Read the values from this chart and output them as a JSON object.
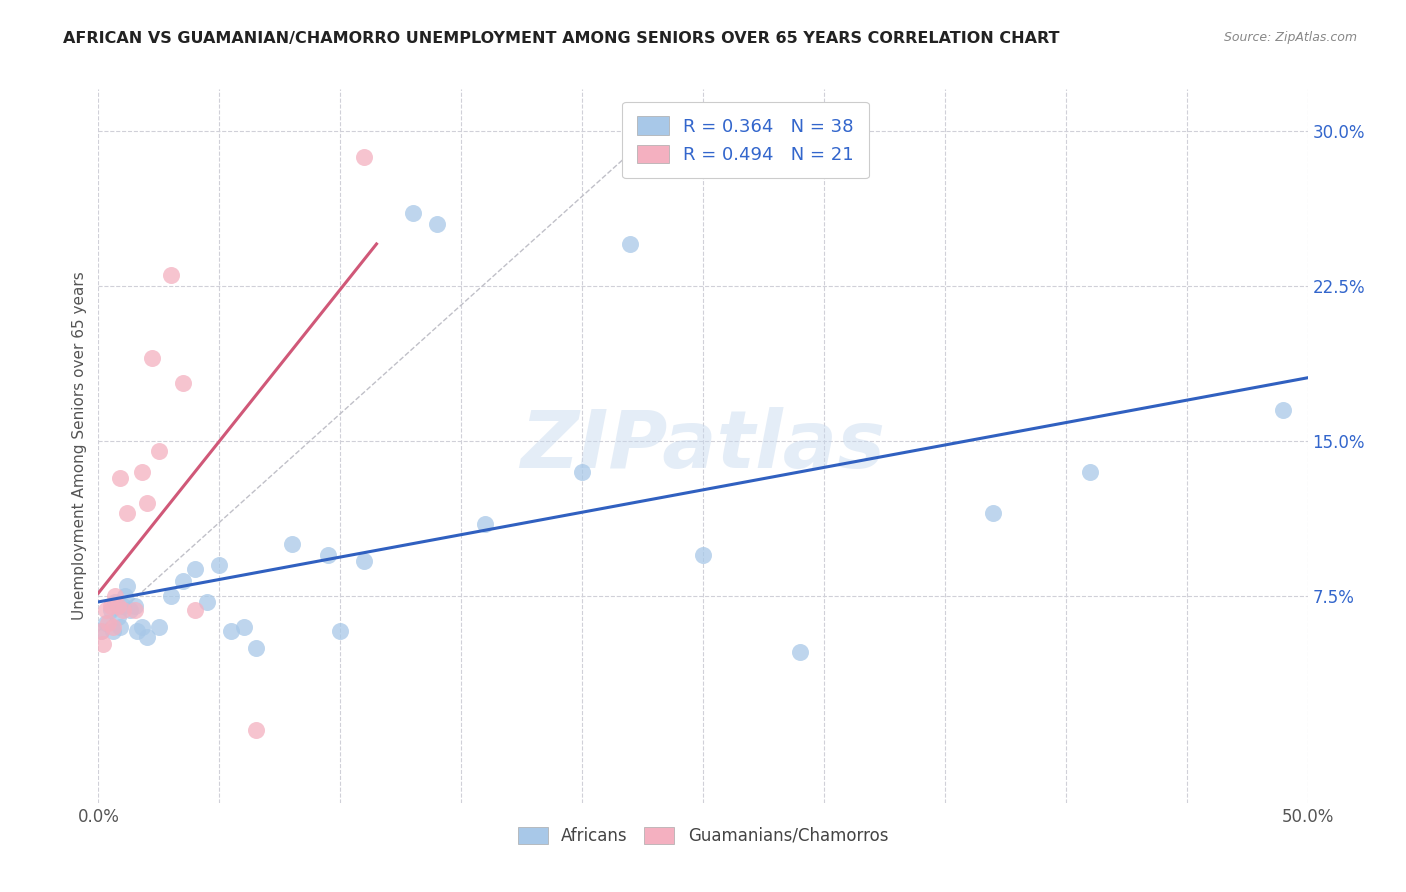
{
  "title": "AFRICAN VS GUAMANIAN/CHAMORRO UNEMPLOYMENT AMONG SENIORS OVER 65 YEARS CORRELATION CHART",
  "source": "Source: ZipAtlas.com",
  "ylabel": "Unemployment Among Seniors over 65 years",
  "xlim": [
    0,
    0.5
  ],
  "ylim": [
    -0.025,
    0.32
  ],
  "yticks": [
    0.075,
    0.15,
    0.225,
    0.3
  ],
  "ytick_labels": [
    "7.5%",
    "15.0%",
    "22.5%",
    "30.0%"
  ],
  "xticks": [
    0.0,
    0.05,
    0.1,
    0.15,
    0.2,
    0.25,
    0.3,
    0.35,
    0.4,
    0.45,
    0.5
  ],
  "xtick_labels": [
    "0.0%",
    "",
    "",
    "",
    "",
    "",
    "",
    "",
    "",
    "",
    "50.0%"
  ],
  "african_color": "#a8c8e8",
  "guamanian_color": "#f4b0c0",
  "african_R": 0.364,
  "african_N": 38,
  "guamanian_R": 0.494,
  "guamanian_N": 21,
  "watermark": "ZIPatlas",
  "background_color": "#ffffff",
  "african_points_x": [
    0.001,
    0.003,
    0.005,
    0.006,
    0.007,
    0.008,
    0.009,
    0.01,
    0.011,
    0.012,
    0.013,
    0.015,
    0.016,
    0.018,
    0.02,
    0.025,
    0.03,
    0.035,
    0.04,
    0.045,
    0.05,
    0.055,
    0.06,
    0.065,
    0.08,
    0.095,
    0.1,
    0.11,
    0.13,
    0.14,
    0.16,
    0.2,
    0.22,
    0.25,
    0.29,
    0.37,
    0.41,
    0.49
  ],
  "african_points_y": [
    0.058,
    0.062,
    0.068,
    0.058,
    0.072,
    0.065,
    0.06,
    0.07,
    0.075,
    0.08,
    0.068,
    0.07,
    0.058,
    0.06,
    0.055,
    0.06,
    0.075,
    0.082,
    0.088,
    0.072,
    0.09,
    0.058,
    0.06,
    0.05,
    0.1,
    0.095,
    0.058,
    0.092,
    0.26,
    0.255,
    0.11,
    0.135,
    0.245,
    0.095,
    0.048,
    0.115,
    0.135,
    0.165
  ],
  "guamanian_points_x": [
    0.001,
    0.002,
    0.003,
    0.004,
    0.005,
    0.006,
    0.007,
    0.008,
    0.009,
    0.01,
    0.012,
    0.015,
    0.018,
    0.02,
    0.022,
    0.025,
    0.03,
    0.035,
    0.04,
    0.065,
    0.11
  ],
  "guamanian_points_y": [
    0.058,
    0.052,
    0.068,
    0.062,
    0.07,
    0.06,
    0.075,
    0.07,
    0.132,
    0.068,
    0.115,
    0.068,
    0.135,
    0.12,
    0.19,
    0.145,
    0.23,
    0.178,
    0.068,
    0.01,
    0.287
  ],
  "blue_line_color": "#3060c0",
  "pink_line_color": "#d05878",
  "dash_line_color": "#c0c0c8"
}
